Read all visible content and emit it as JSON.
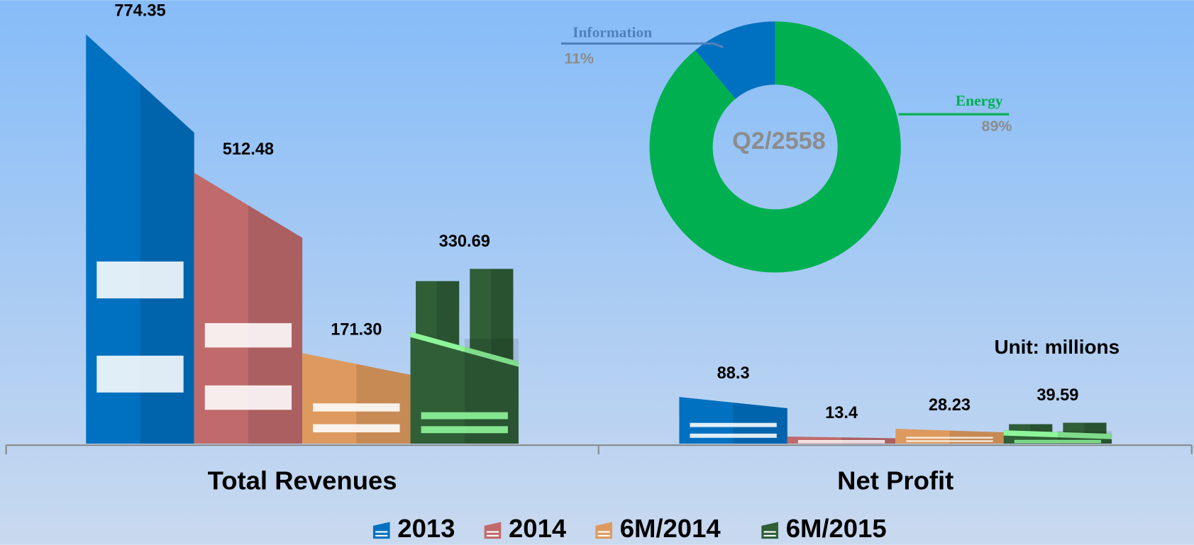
{
  "chart_data": [
    {
      "type": "bar",
      "categories": [
        "Total Revenues",
        "Net Profit"
      ],
      "series": [
        {
          "name": "2013",
          "color": "#0070c0",
          "values": [
            774.35,
            88.3
          ],
          "value_labels": [
            "774.35",
            "88.3"
          ]
        },
        {
          "name": "2014",
          "color": "#c06a6c",
          "values": [
            512.48,
            13.4
          ],
          "value_labels": [
            "512.48",
            "13.4"
          ]
        },
        {
          "name": "6M/2014",
          "color": "#de9a5e",
          "values": [
            171.3,
            28.23
          ],
          "value_labels": [
            "171.30",
            "28.23"
          ]
        },
        {
          "name": "6M/2015",
          "color": "#2f5e37",
          "values": [
            330.69,
            39.59
          ],
          "value_labels": [
            "330.69",
            "39.59"
          ]
        }
      ],
      "annotation": "Unit: millions"
    },
    {
      "type": "pie",
      "title": "Q2/2558",
      "categories": [
        "Information",
        "Energy"
      ],
      "values": [
        11,
        89
      ],
      "value_labels": [
        "11%",
        "89%"
      ],
      "colors": [
        "#0070c0",
        "#00b050"
      ],
      "donut": true
    }
  ]
}
